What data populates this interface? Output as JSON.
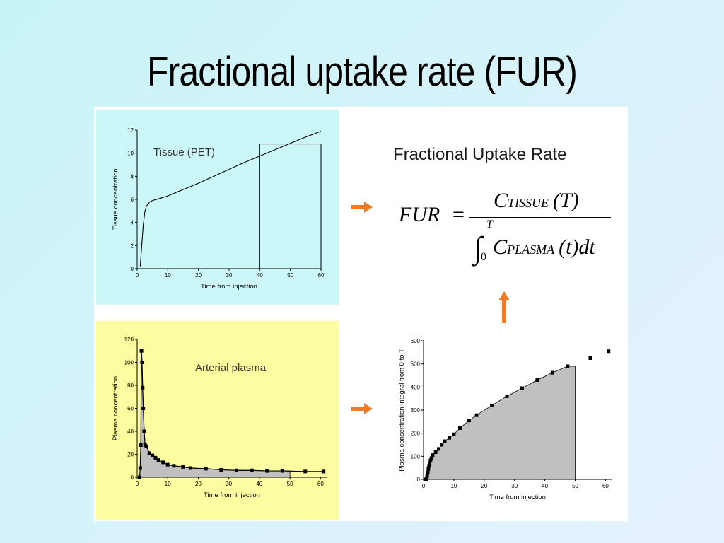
{
  "slide": {
    "title": "Fractional uptake rate (FUR)"
  },
  "formula": {
    "heading": "Fractional Uptake Rate",
    "lhs": "FUR",
    "equals": "=",
    "numerator_symbol": "C",
    "numerator_subscript": "TISSUE",
    "numerator_argument": "(T)",
    "denominator_integral": "∫",
    "integral_upper": "T",
    "integral_lower": "0",
    "denominator_symbol": "C",
    "denominator_subscript": "PLASMA",
    "denominator_argument": "(t)dt"
  },
  "colors": {
    "arrow": "#f47a20",
    "tissue_background": "#ccf7f9",
    "plasma_background": "#fcfca0",
    "shaded_area": "#c0c0c0"
  },
  "arrows": [
    {
      "name": "tissue-to-formula-arrow",
      "direction": "right"
    },
    {
      "name": "plasma-to-integral-arrow",
      "direction": "right"
    },
    {
      "name": "integral-to-formula-arrow",
      "direction": "up"
    }
  ],
  "chart_data": [
    {
      "type": "line",
      "annotation": "Tissue (PET)",
      "xlabel": "Time from injection",
      "ylabel": "Tissue concentration",
      "xlim": [
        0,
        60
      ],
      "ylim": [
        0,
        12
      ],
      "xticks": [
        0,
        10,
        20,
        30,
        40,
        50,
        60
      ],
      "yticks": [
        0,
        2,
        4,
        6,
        8,
        10,
        12
      ],
      "x": [
        1,
        1.5,
        2,
        2.5,
        3,
        4,
        5,
        7,
        10,
        15,
        20,
        25,
        30,
        35,
        40,
        45,
        50,
        55,
        60
      ],
      "y": [
        0.2,
        2.0,
        3.8,
        4.9,
        5.4,
        5.75,
        5.9,
        6.05,
        6.3,
        6.85,
        7.4,
        8.0,
        8.6,
        9.2,
        9.75,
        10.3,
        10.85,
        11.4,
        11.9
      ],
      "highlight_rect": {
        "x": [
          40,
          60
        ],
        "y": [
          0,
          10.8
        ]
      }
    },
    {
      "type": "line",
      "annotation": "Arterial plasma",
      "xlabel": "Time from injection",
      "ylabel": "Plasma concentration",
      "xlim": [
        0,
        62
      ],
      "ylim": [
        0,
        120
      ],
      "xticks": [
        0,
        10,
        20,
        30,
        40,
        50,
        60
      ],
      "yticks": [
        0,
        20,
        40,
        60,
        80,
        100,
        120
      ],
      "shaded_x_range": [
        0,
        50
      ],
      "x": [
        0.8,
        1.0,
        1.2,
        1.4,
        1.6,
        1.8,
        2.0,
        2.3,
        2.6,
        3.0,
        4.0,
        5.0,
        6.0,
        7.0,
        8.5,
        10.0,
        12.0,
        15.0,
        17.5,
        22.5,
        27.5,
        32.5,
        37.5,
        42.5,
        47.5,
        55.0,
        61.0
      ],
      "y": [
        0,
        8,
        28,
        110,
        100,
        78,
        60,
        40,
        28,
        27,
        21,
        19,
        17,
        15,
        13,
        11,
        10,
        9,
        8,
        7.5,
        6.5,
        6,
        6,
        5.5,
        5.5,
        5,
        5
      ]
    },
    {
      "type": "area",
      "xlabel": "Time from injection",
      "ylabel": "Plasma concentration integral from 0 to T",
      "xlim": [
        0,
        62
      ],
      "ylim": [
        0,
        600
      ],
      "xticks": [
        0,
        10,
        20,
        30,
        40,
        50,
        60
      ],
      "yticks": [
        0,
        100,
        200,
        300,
        400,
        500,
        600
      ],
      "shaded_x_range": [
        0,
        50
      ],
      "x": [
        0.8,
        1.0,
        1.2,
        1.4,
        1.6,
        1.8,
        2.0,
        2.3,
        2.6,
        3.0,
        4.0,
        5.0,
        6.0,
        7.0,
        8.5,
        10.0,
        12.0,
        15.0,
        17.5,
        22.5,
        27.5,
        32.5,
        37.5,
        42.5,
        47.5,
        55.0,
        61.0
      ],
      "y": [
        0,
        5,
        15,
        30,
        45,
        58,
        70,
        82,
        92,
        105,
        118,
        132,
        150,
        165,
        180,
        195,
        222,
        255,
        278,
        320,
        360,
        395,
        430,
        462,
        490,
        525,
        555
      ]
    }
  ]
}
